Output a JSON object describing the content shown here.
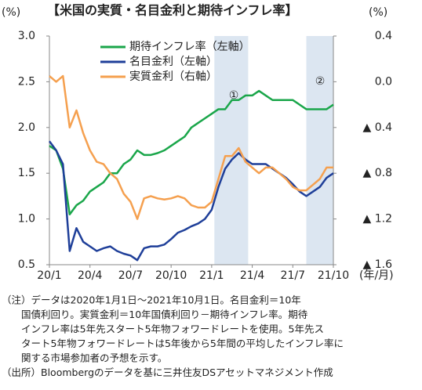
{
  "chart_data": {
    "type": "line",
    "title": "【米国の実質・名目金利と期待インフレ率】",
    "y_label": "(%)",
    "y2_label": "(%)",
    "x_label": "(年/月)",
    "x": [
      0,
      0.5,
      1,
      1.5,
      2,
      2.5,
      3,
      3.5,
      4,
      4.5,
      5,
      5.5,
      6,
      6.5,
      7,
      7.5,
      8,
      8.5,
      9,
      9.5,
      10,
      10.5,
      11,
      11.5,
      12,
      12.5,
      13,
      13.5,
      14,
      14.5,
      15,
      15.5,
      16,
      16.5,
      17,
      17.5,
      18,
      18.5,
      19,
      19.5,
      20,
      20.5,
      21
    ],
    "xlim": [
      0,
      21
    ],
    "xticks": [
      {
        "value": 0,
        "label": "20/1"
      },
      {
        "value": 3,
        "label": "20/4"
      },
      {
        "value": 6,
        "label": "20/7"
      },
      {
        "value": 9,
        "label": "20/10"
      },
      {
        "value": 12,
        "label": "21/1"
      },
      {
        "value": 15,
        "label": "21/4"
      },
      {
        "value": 18,
        "label": "21/7"
      },
      {
        "value": 21,
        "label": "21/10"
      }
    ],
    "ylim": [
      0.5,
      3
    ],
    "yticks": [
      0.5,
      {
        "value": 1,
        "label": "1.0"
      },
      1.5,
      {
        "value": 2,
        "label": "2.0"
      },
      2.5,
      {
        "value": 3,
        "label": "3.0"
      }
    ],
    "y2lim": [
      -1.6,
      0.4
    ],
    "y2ticks": [
      0.4,
      {
        "value": 0,
        "label": "0.0"
      },
      {
        "value": -0.4,
        "label": "▲ 0.4"
      },
      {
        "value": -0.8,
        "label": "▲ 0.8"
      },
      {
        "value": -1.2,
        "label": "▲ 1.2"
      },
      {
        "value": -1.6,
        "label": "▲ 1.6"
      }
    ],
    "shaded_regions": [
      {
        "xlim": [
          12.2,
          14.7
        ],
        "label": "①"
      },
      {
        "xlim": [
          19.0,
          21.0
        ],
        "label": "②"
      }
    ],
    "shade_color": "#dce6f1",
    "series": [
      {
        "name": "期待インフレ率（左軸）",
        "color": "#1aa64a",
        "values": [
          1.8,
          1.75,
          1.55,
          1.05,
          1.15,
          1.2,
          1.3,
          1.35,
          1.4,
          1.5,
          1.5,
          1.6,
          1.65,
          1.75,
          1.7,
          1.7,
          1.72,
          1.75,
          1.8,
          1.85,
          1.9,
          2.0,
          2.05,
          2.1,
          2.15,
          2.2,
          2.2,
          2.3,
          2.3,
          2.35,
          2.35,
          2.4,
          2.35,
          2.3,
          2.3,
          2.3,
          2.3,
          2.25,
          2.2,
          2.2,
          2.2,
          2.2,
          2.25
        ]
      },
      {
        "name": "名目金利（左軸）",
        "color": "#1f3f99",
        "values": [
          1.85,
          1.75,
          1.6,
          0.65,
          0.9,
          0.75,
          0.7,
          0.65,
          0.68,
          0.7,
          0.65,
          0.62,
          0.6,
          0.55,
          0.68,
          0.7,
          0.7,
          0.72,
          0.78,
          0.85,
          0.88,
          0.92,
          0.95,
          1.0,
          1.1,
          1.35,
          1.55,
          1.65,
          1.72,
          1.65,
          1.6,
          1.6,
          1.6,
          1.55,
          1.5,
          1.45,
          1.38,
          1.3,
          1.25,
          1.3,
          1.35,
          1.45,
          1.5
        ]
      },
      {
        "name": "実質金利（右軸）",
        "color": "#f5a04f",
        "axis": "y2",
        "values": [
          0.05,
          0.0,
          0.05,
          -0.4,
          -0.25,
          -0.45,
          -0.6,
          -0.7,
          -0.72,
          -0.8,
          -0.85,
          -0.98,
          -1.05,
          -1.2,
          -1.02,
          -1.0,
          -1.02,
          -1.03,
          -1.02,
          -1.0,
          -1.02,
          -1.08,
          -1.1,
          -1.1,
          -1.05,
          -0.85,
          -0.65,
          -0.65,
          -0.58,
          -0.7,
          -0.75,
          -0.8,
          -0.75,
          -0.75,
          -0.8,
          -0.85,
          -0.92,
          -0.95,
          -0.95,
          -0.9,
          -0.85,
          -0.75,
          -0.75
        ]
      }
    ],
    "notes": [
      "（注）データは2020年1月1日～2021年10月1日。名目金利＝10年",
      "　　国債利回り。実質金利＝10年国債利回り－期待インフレ率。期待",
      "　　インフレ率は5年先スタート5年物フォワードレートを使用。5年先ス",
      "　　タート5年物フォワードレートは5年後から5年間の平均したインフレ率に",
      "　　関する市場参加者の予想を示す。",
      "（出所）Bloombergのデータを基に三井住友DSアセットマネジメント作成"
    ]
  }
}
